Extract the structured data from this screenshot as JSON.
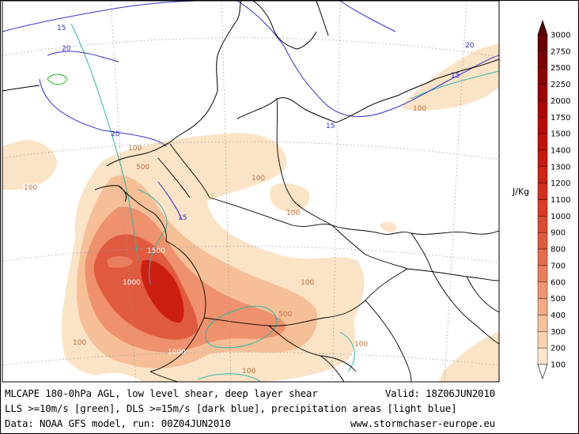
{
  "map": {
    "contour_labels": {
      "cape_100": "100",
      "cape_500": "500",
      "cape_1000": "1000",
      "cape_1500": "1500",
      "shear_15": "15",
      "shear_20": "20"
    }
  },
  "colorbar": {
    "unit": "J/Kg",
    "levels": [
      "100",
      "200",
      "300",
      "400",
      "500",
      "600",
      "700",
      "800",
      "900",
      "1000",
      "1100",
      "1200",
      "1300",
      "1400",
      "1500",
      "1750",
      "2000",
      "2250",
      "2500",
      "2750",
      "3000"
    ],
    "colors": [
      "#fde6cc",
      "#f9d2b0",
      "#f7c19a",
      "#f3ab83",
      "#ef9570",
      "#ea7e5c",
      "#e66b4b",
      "#e25a3d",
      "#de4a30",
      "#d93b25",
      "#d42e1c",
      "#cf2314",
      "#c9190d",
      "#c21108",
      "#bb0a04",
      "#ae0502",
      "#9f0301",
      "#8e0201",
      "#7c0100",
      "#6a0000"
    ]
  },
  "footer": {
    "line1": "MLCAPE 180-0hPa AGL, low level shear, deep layer shear",
    "valid": "Valid: 18Z06JUN2010",
    "line2": "LLS >=10m/s [green], DLS >=15m/s [dark blue], precipitation areas [light blue]",
    "line3": "Data: NOAA GFS model, run: 00Z04JUN2010",
    "site": "www.stormchaser-europe.eu"
  }
}
